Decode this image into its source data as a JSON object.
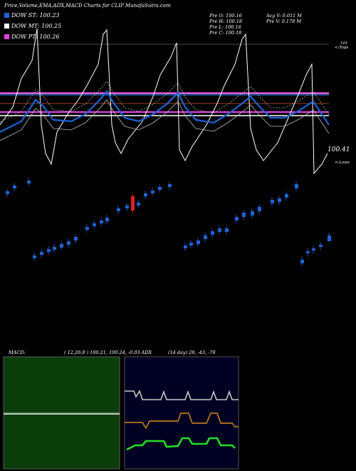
{
  "header": {
    "caption": "Price,Volume,EMA,ADX,MACD Charts for CLIP MunafaSutra.com"
  },
  "legend": [
    {
      "label": "DOW ST: 100.23",
      "color": "#1e63d6"
    },
    {
      "label": "DOW MT: 100.25",
      "color": "#ffffff"
    },
    {
      "label": "DOW PT: 100.26",
      "color": "#e040e0"
    }
  ],
  "stats": {
    "col1": [
      "Pre   O: 100.16",
      "Pre   H: 100.18",
      "Pre   L: 100.16",
      "Pre   C: 100.18"
    ],
    "col2": [
      "Avg V: 0.011 M",
      "Pre   V: 0.178  M"
    ]
  },
  "side_labels": {
    "top_value": "101",
    "top_text": "<-Tops",
    "price_value": "100.41",
    "low_text": "<-Lows"
  },
  "indicator_labels": {
    "macd": "MACD:",
    "macd_values": "( 12,26,9 ) 100.21,  100.24,  -0.03 ADX",
    "adx_values": "(14  day) 28,  -43,  -78"
  },
  "colors": {
    "up": "#1e63d6",
    "down": "#e02020",
    "macd_bg": "#0a3d0a",
    "adx_bg": "#000022",
    "orange": "#d98c1a",
    "green": "#22e022",
    "gray": "#c8c8c8",
    "pink": "#e040e0",
    "brown": "#a04020"
  },
  "chart_data": [
    {
      "type": "line",
      "title": "Price,Volume,EMA,ADX,MACD Charts for CLIP",
      "ylim": [
        99.0,
        101.0
      ],
      "hlines": [
        {
          "name": "DOW ST",
          "y": 100.23
        },
        {
          "name": "DOW MT",
          "y": 100.25
        },
        {
          "name": "DOW PT",
          "y": 100.26
        },
        {
          "y": 100.41
        },
        {
          "y": 101
        }
      ],
      "series": [
        {
          "values": [
            100.25,
            100.9,
            101.2,
            100.3,
            100.0,
            100.5,
            100.9,
            101.4,
            100.2,
            99.95,
            100.5,
            100.9,
            101.2,
            100.25,
            99.8,
            100.4,
            100.8,
            101.3
          ]
        },
        {
          "values": [
            100.2,
            100.3,
            100.4,
            100.3,
            100.2,
            100.25,
            100.35,
            100.45,
            100.3,
            100.2,
            100.25,
            100.35,
            100.45,
            100.3,
            100.2,
            100.25,
            100.35,
            100.4
          ]
        }
      ]
    },
    {
      "type": "scatter",
      "values_open_close": [
        [
          99.6,
          99.65
        ],
        [
          99.68,
          99.72
        ],
        [
          99.73,
          99.75
        ],
        [
          98.3,
          98.35
        ],
        [
          98.38,
          98.42
        ],
        [
          98.44,
          98.5
        ],
        [
          98.52,
          98.58
        ],
        [
          98.6,
          98.66
        ],
        [
          98.68,
          98.72
        ],
        [
          98.74,
          98.8
        ],
        [
          98.82,
          98.88
        ],
        [
          98.9,
          98.98
        ],
        [
          99.0,
          99.06
        ],
        [
          99.08,
          99.14
        ],
        [
          99.5,
          99.3
        ],
        [
          99.24,
          99.28
        ],
        [
          99.35,
          99.4
        ],
        [
          99.44,
          99.48
        ],
        [
          99.5,
          99.55
        ],
        [
          99.58,
          99.64
        ],
        [
          99.7,
          99.75
        ],
        [
          99.8,
          99.85
        ],
        [
          98.4,
          98.45
        ],
        [
          98.5,
          98.55
        ],
        [
          98.6,
          98.65
        ],
        [
          98.7,
          98.75
        ],
        [
          98.8,
          98.86
        ],
        [
          98.9,
          98.95
        ],
        [
          99.0,
          99.06
        ],
        [
          99.1,
          99.16
        ],
        [
          99.2,
          99.26
        ],
        [
          99.3,
          99.36
        ],
        [
          99.42,
          99.48
        ],
        [
          99.55,
          99.6
        ],
        [
          98.1,
          98.15
        ],
        [
          98.2,
          98.25
        ],
        [
          98.3,
          98.35
        ],
        [
          98.42,
          98.5
        ]
      ]
    },
    {
      "type": "line",
      "title": "MACD",
      "series": [
        {
          "name": "MACD",
          "values": [
            100.21,
            100.22,
            100.23,
            100.21,
            100.22,
            100.24,
            100.22,
            100.21
          ]
        }
      ]
    },
    {
      "type": "line",
      "title": "ADX",
      "series": [
        {
          "name": "ADX",
          "values": [
            28,
            28,
            29,
            28,
            29,
            28,
            29,
            28
          ]
        },
        {
          "name": "DI+",
          "values": [
            -43,
            -40,
            -45,
            -41,
            -46,
            -42,
            -44,
            -43
          ]
        },
        {
          "name": "DI-",
          "values": [
            -78,
            -75,
            -80,
            -76,
            -79,
            -77,
            -80,
            -78
          ]
        }
      ]
    }
  ]
}
